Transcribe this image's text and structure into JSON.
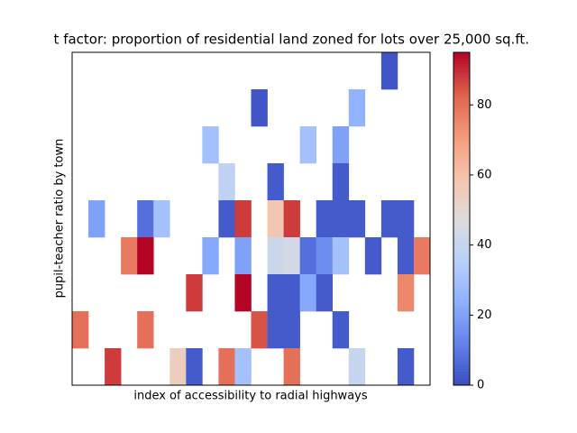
{
  "chart_data": {
    "type": "heatmap",
    "title": "t factor: proportion of residential land zoned for lots over 25,000 sq.ft.",
    "xlabel": "index of accessibility to radial highways",
    "ylabel": "pupil-teacher ratio by town",
    "colormap": "coolwarm",
    "zlim": [
      0,
      95
    ],
    "colorbar_ticks": [
      0,
      20,
      40,
      60,
      80
    ],
    "z": [
      [
        null,
        null,
        null,
        null,
        null,
        null,
        null,
        null,
        null,
        null,
        null,
        null,
        null,
        null,
        null,
        null,
        null,
        null,
        null,
        2,
        null,
        null
      ],
      [
        null,
        null,
        null,
        null,
        null,
        null,
        null,
        null,
        null,
        null,
        null,
        2,
        null,
        null,
        null,
        null,
        null,
        25,
        null,
        null,
        null,
        null
      ],
      [
        null,
        null,
        null,
        null,
        null,
        null,
        null,
        null,
        30,
        null,
        null,
        null,
        null,
        null,
        30,
        null,
        20,
        null,
        null,
        null,
        null,
        null
      ],
      [
        null,
        null,
        null,
        null,
        null,
        null,
        null,
        null,
        null,
        38,
        null,
        null,
        3,
        null,
        null,
        null,
        3,
        null,
        null,
        null,
        null,
        null
      ],
      [
        null,
        20,
        null,
        null,
        8,
        30,
        null,
        null,
        null,
        3,
        88,
        null,
        58,
        88,
        null,
        3,
        3,
        3,
        null,
        3,
        3,
        null
      ],
      [
        null,
        null,
        null,
        78,
        95,
        null,
        null,
        null,
        22,
        null,
        20,
        null,
        42,
        44,
        8,
        15,
        30,
        null,
        3,
        null,
        3,
        78
      ],
      [
        null,
        null,
        null,
        null,
        null,
        null,
        null,
        88,
        null,
        null,
        95,
        null,
        3,
        3,
        22,
        3,
        null,
        null,
        null,
        null,
        75,
        null
      ],
      [
        80,
        null,
        null,
        null,
        80,
        null,
        null,
        null,
        null,
        null,
        null,
        85,
        3,
        3,
        null,
        null,
        3,
        null,
        null,
        null,
        null,
        null
      ],
      [
        null,
        null,
        88,
        null,
        null,
        null,
        55,
        3,
        null,
        80,
        30,
        null,
        null,
        80,
        null,
        null,
        null,
        40,
        null,
        null,
        3,
        null
      ]
    ]
  }
}
